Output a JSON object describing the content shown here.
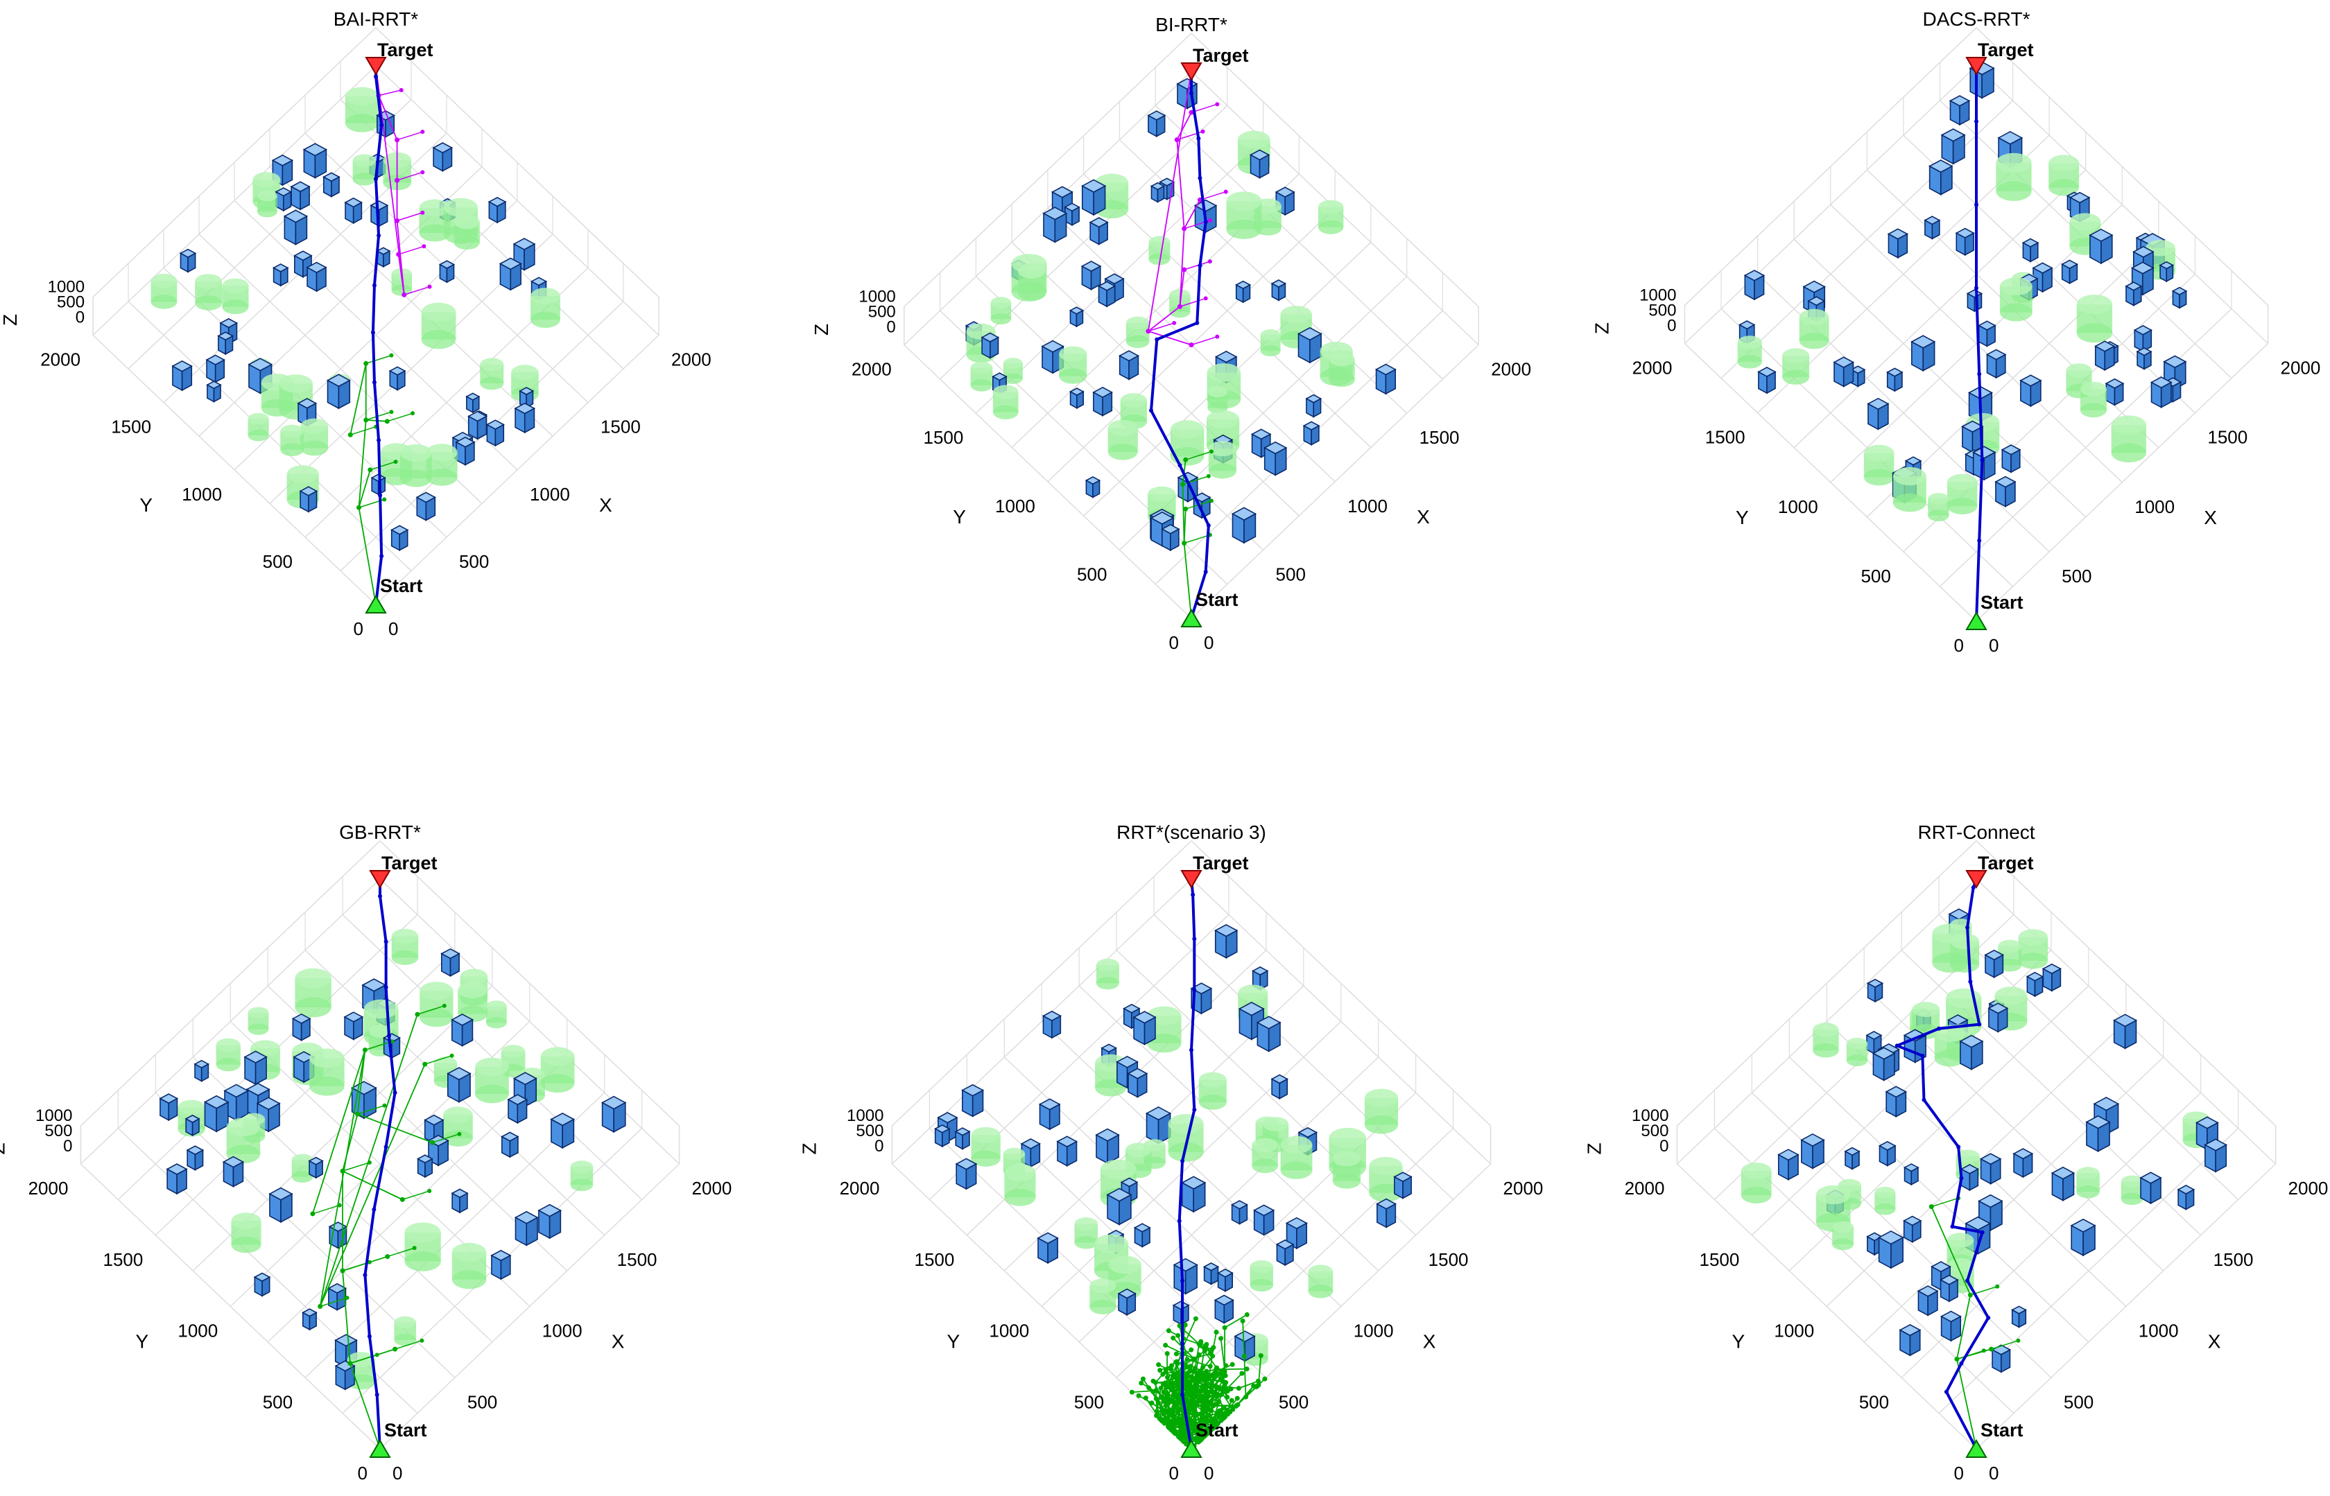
{
  "colors": {
    "box_face": "#4a90e2",
    "box_top": "#9cc9f5",
    "box_edge": "#0a2a6b",
    "cylinder": "#90ee90",
    "path": "#0000cc",
    "tree_start": "#00aa00",
    "tree_target": "#cc00ff",
    "start_marker": "#33ee33",
    "target_marker": "#ff3333",
    "grid": "#dddddd"
  },
  "common": {
    "x_label": "X",
    "y_label": "Y",
    "z_label": "Z",
    "xy_ticks": [
      "0",
      "500",
      "1000",
      "1500",
      "2000"
    ],
    "z_ticks": [
      "1000",
      "500",
      "0"
    ],
    "start_label": "Start",
    "target_label": "Target"
  },
  "chart_data": [
    {
      "type": "scatter",
      "title": "BAI-RRT*",
      "xlabel": "X",
      "ylabel": "Y",
      "zlabel": "Z",
      "xlim": [
        0,
        2000
      ],
      "ylim": [
        0,
        2000
      ],
      "zlim": [
        0,
        1000
      ],
      "legend": [],
      "start": [
        0,
        0
      ],
      "target": [
        2000,
        2000
      ],
      "series": [
        {
          "role": "path",
          "x": [
            0,
            200,
            420,
            620,
            820,
            1000,
            1180,
            1380,
            1580,
            1800,
            1960,
            2000
          ],
          "y": [
            0,
            160,
            390,
            600,
            830,
            1020,
            1190,
            1360,
            1580,
            1760,
            1960,
            2000
          ]
        },
        {
          "role": "tree-start",
          "x": [
            300,
            480,
            650,
            720,
            860,
            540
          ],
          "y": [
            420,
            520,
            720,
            640,
            930,
            720
          ]
        },
        {
          "role": "tree-target",
          "x": [
            1250,
            1380,
            1500,
            1650,
            1800,
            1900
          ],
          "y": [
            1050,
            1220,
            1350,
            1500,
            1650,
            1880
          ]
        }
      ]
    },
    {
      "type": "scatter",
      "title": "BI-RRT*",
      "xlabel": "X",
      "ylabel": "Y",
      "zlabel": "Z",
      "xlim": [
        0,
        2000
      ],
      "ylim": [
        0,
        2000
      ],
      "zlim": [
        0,
        1000
      ],
      "legend": [],
      "start": [
        0,
        0
      ],
      "target": [
        2000,
        2000
      ],
      "series": [
        {
          "role": "path",
          "x": [
            0,
            220,
            400,
            520,
            620,
            900,
            1100,
            1320,
            1500,
            1640,
            1780,
            1920,
            2000
          ],
          "y": [
            0,
            120,
            280,
            600,
            900,
            1140,
            1060,
            1260,
            1400,
            1580,
            1730,
            1920,
            2000
          ]
        },
        {
          "role": "tree-start",
          "x": [
            250,
            380,
            460,
            560
          ],
          "y": [
            300,
            420,
            520,
            600
          ]
        },
        {
          "role": "tree-target",
          "x": [
            900,
            1000,
            1100,
            1250,
            1400,
            1560,
            1700,
            1850
          ],
          "y": [
            1200,
            1000,
            1180,
            1300,
            1450,
            1500,
            1800,
            1850
          ]
        }
      ]
    },
    {
      "type": "scatter",
      "title": "DACS-RRT*",
      "xlabel": "X",
      "ylabel": "Y",
      "zlabel": "Z",
      "xlim": [
        0,
        2000
      ],
      "ylim": [
        0,
        2000
      ],
      "zlim": [
        0,
        1000
      ],
      "legend": [],
      "start": [
        0,
        0
      ],
      "target": [
        2000,
        2000
      ],
      "series": [
        {
          "role": "path",
          "x": [
            0,
            300,
            600,
            900,
            1200,
            1500,
            1800,
            2000
          ],
          "y": [
            0,
            280,
            560,
            880,
            1200,
            1500,
            1800,
            2000
          ]
        }
      ]
    },
    {
      "type": "scatter",
      "title": "GB-RRT*",
      "xlabel": "X",
      "ylabel": "Y",
      "zlabel": "Z",
      "xlim": [
        0,
        2000
      ],
      "ylim": [
        0,
        2000
      ],
      "zlim": [
        0,
        1000
      ],
      "legend": [],
      "start": [
        0,
        0
      ],
      "target": [
        2000,
        2000
      ],
      "series": [
        {
          "role": "path",
          "x": [
            0,
            180,
            360,
            560,
            820,
            1080,
            1300,
            1480,
            1640,
            1800,
            1940,
            2000
          ],
          "y": [
            0,
            200,
            430,
            660,
            860,
            1040,
            1200,
            1420,
            1600,
            1760,
            1940,
            2000
          ]
        },
        {
          "role": "tree-start",
          "x": [
            200,
            400,
            500,
            700,
            850,
            950,
            1100,
            1250,
            1350,
            600,
            300,
            1500,
            1650
          ],
          "y": [
            400,
            300,
            750,
            650,
            1100,
            800,
            1250,
            900,
            1450,
            1050,
            700,
            1200,
            1400
          ]
        }
      ]
    },
    {
      "type": "scatter",
      "title": "RRT*(scenario 3)",
      "xlabel": "X",
      "ylabel": "Y",
      "zlabel": "Z",
      "xlim": [
        0,
        2000
      ],
      "ylim": [
        0,
        2000
      ],
      "zlim": [
        0,
        1000
      ],
      "legend": [],
      "start": [
        0,
        0
      ],
      "target": [
        2000,
        2000
      ],
      "series": [
        {
          "role": "path",
          "x": [
            0,
            160,
            340,
            560,
            760,
            980,
            1200,
            1400,
            1620,
            1800,
            1950,
            2000
          ],
          "y": [
            0,
            220,
            400,
            620,
            840,
            1040,
            1180,
            1400,
            1600,
            1780,
            1940,
            2000
          ]
        },
        {
          "role": "tree-start",
          "dense": true
        }
      ]
    },
    {
      "type": "scatter",
      "title": "RRT-Connect",
      "xlabel": "X",
      "ylabel": "Y",
      "zlabel": "Z",
      "xlim": [
        0,
        2000
      ],
      "ylim": [
        0,
        2000
      ],
      "zlim": [
        0,
        1000
      ],
      "legend": [],
      "start": [
        0,
        0
      ],
      "target": [
        2000,
        2000
      ],
      "series": [
        {
          "role": "path",
          "x": [
            0,
            100,
            250,
            500,
            560,
            780,
            700,
            900,
            1000,
            1050,
            1200,
            1150,
            1350,
            1500,
            1620,
            1800,
            1960,
            2000
          ],
          "y": [
            0,
            300,
            350,
            420,
            620,
            740,
            860,
            1000,
            1120,
            1400,
            1560,
            1680,
            1600,
            1480,
            1660,
            1860,
            1980,
            2000
          ]
        },
        {
          "role": "tree-start",
          "x": [
            250,
            400,
            520,
            700
          ],
          "y": [
            380,
            300,
            560,
            1000
          ]
        }
      ]
    }
  ]
}
